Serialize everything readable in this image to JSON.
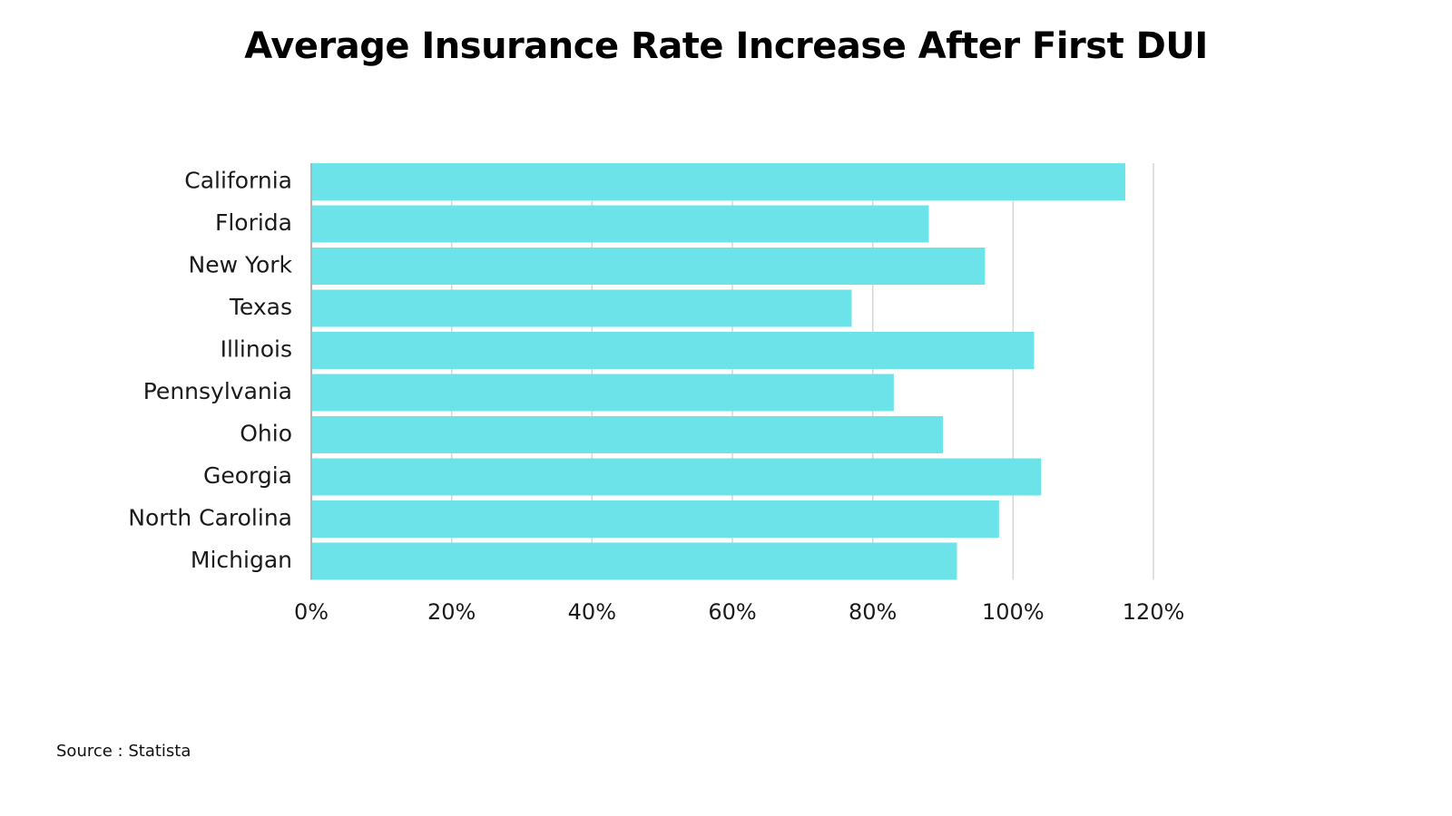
{
  "title": "Average Insurance Rate Increase After First DUI",
  "source": "Source : Statista",
  "colors": {
    "bar": "#6ce3e8",
    "grid": "#d6d6d6",
    "axis": "#999999"
  },
  "chart_data": {
    "type": "bar",
    "orientation": "horizontal",
    "title": "Average Insurance Rate Increase After First DUI",
    "xlabel": "",
    "ylabel": "",
    "categories": [
      "California",
      "Florida",
      "New York",
      "Texas",
      "Illinois",
      "Pennsylvania",
      "Ohio",
      "Georgia",
      "North Carolina",
      "Michigan"
    ],
    "values": [
      116,
      88,
      96,
      77,
      103,
      83,
      90,
      104,
      98,
      92
    ],
    "xlim": [
      0,
      120
    ],
    "xticks": [
      0,
      20,
      40,
      60,
      80,
      100,
      120
    ],
    "xtick_labels": [
      "0%",
      "20%",
      "40%",
      "60%",
      "80%",
      "100%",
      "120%"
    ],
    "grid": true,
    "legend": "none"
  }
}
